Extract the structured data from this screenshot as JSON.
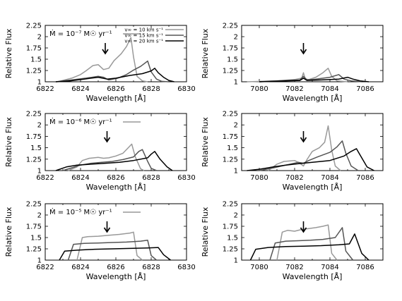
{
  "figure": {
    "legend_entries": [
      "v∞ = 10 km s⁻¹",
      "v∞ = 15 km s⁻¹",
      "v∞ = 20 km s⁻¹"
    ],
    "colors": {
      "v10": "#999999",
      "v15": "#555555",
      "v20": "#000000"
    }
  },
  "chart_data": [
    {
      "type": "line",
      "panel": "top-left",
      "xlabel": "Wavelength [Å]",
      "ylabel": "Relative Flux",
      "xlim": [
        6822,
        6830
      ],
      "ylim": [
        1,
        2.25
      ],
      "xticks": [
        "6822",
        "6824",
        "6826",
        "6828",
        "6830"
      ],
      "yticks": [
        "1",
        "1.25",
        "1.5",
        "1.75",
        "2",
        "2.25"
      ],
      "mdot_label": "Ṁ = 10⁻⁷ M☉ yr⁻¹",
      "arrow_x": 6825.4,
      "series": [
        {
          "name": "v∞ = 10 km s⁻¹",
          "color": "#999999",
          "x": [
            6822.7,
            6823.5,
            6824.0,
            6824.3,
            6824.7,
            6825.0,
            6825.3,
            6825.6,
            6825.9,
            6826.3,
            6826.6,
            6826.85,
            6827.0,
            6827.2,
            6827.5,
            6827.8
          ],
          "y": [
            1.0,
            1.08,
            1.16,
            1.24,
            1.36,
            1.38,
            1.27,
            1.3,
            1.47,
            1.62,
            1.78,
            1.98,
            1.55,
            1.12,
            1.02,
            1.0
          ]
        },
        {
          "name": "v∞ = 15 km s⁻¹",
          "color": "#555555",
          "x": [
            6822.6,
            6823.5,
            6824.3,
            6825.0,
            6825.3,
            6825.6,
            6826.1,
            6826.6,
            6827.0,
            6827.4,
            6827.8,
            6828.0,
            6828.3,
            6828.6,
            6829.0
          ],
          "y": [
            1.0,
            1.04,
            1.08,
            1.12,
            1.1,
            1.04,
            1.08,
            1.16,
            1.26,
            1.34,
            1.46,
            1.22,
            1.06,
            1.01,
            1.0
          ]
        },
        {
          "name": "v∞ = 20 km s⁻¹",
          "color": "#000000",
          "x": [
            6822.6,
            6823.4,
            6824.2,
            6825.0,
            6825.5,
            6826.0,
            6826.8,
            6827.5,
            6828.0,
            6828.2,
            6828.4,
            6828.7,
            6829.0,
            6829.3
          ],
          "y": [
            1.0,
            1.02,
            1.06,
            1.1,
            1.06,
            1.08,
            1.14,
            1.18,
            1.24,
            1.3,
            1.2,
            1.1,
            1.03,
            1.0
          ]
        }
      ]
    },
    {
      "type": "line",
      "panel": "top-right",
      "xlabel": "Wavelength [Å]",
      "ylabel": "Relative Flux",
      "xlim": [
        7079,
        7087
      ],
      "ylim": [
        1,
        2.25
      ],
      "xticks": [
        "7080",
        "7082",
        "7084",
        "7086"
      ],
      "yticks": [
        "1",
        "1.25",
        "1.5",
        "1.75",
        "2",
        "2.25"
      ],
      "arrow_x": 7082.5,
      "series": [
        {
          "name": "v∞ = 10 km s⁻¹",
          "color": "#999999",
          "x": [
            7079.3,
            7081.0,
            7082.0,
            7082.4,
            7082.5,
            7082.6,
            7082.8,
            7083.2,
            7083.6,
            7083.9,
            7084.1,
            7084.4,
            7085.0
          ],
          "y": [
            1.0,
            1.02,
            1.05,
            1.08,
            1.2,
            1.06,
            1.05,
            1.1,
            1.2,
            1.3,
            1.12,
            1.02,
            1.0
          ]
        },
        {
          "name": "v∞ = 15 km s⁻¹",
          "color": "#555555",
          "x": [
            7080.0,
            7081.5,
            7082.3,
            7082.5,
            7082.7,
            7083.2,
            7084.0,
            7084.5,
            7084.8,
            7085.2,
            7085.8
          ],
          "y": [
            1.0,
            1.03,
            1.04,
            1.12,
            1.04,
            1.06,
            1.1,
            1.16,
            1.06,
            1.02,
            1.0
          ]
        },
        {
          "name": "v∞ = 20 km s⁻¹",
          "color": "#000000",
          "x": [
            7080.0,
            7081.5,
            7082.3,
            7082.5,
            7082.7,
            7083.5,
            7084.5,
            7085.0,
            7085.3,
            7085.7,
            7086.2
          ],
          "y": [
            1.0,
            1.02,
            1.03,
            1.08,
            1.03,
            1.04,
            1.06,
            1.1,
            1.06,
            1.02,
            1.0
          ]
        }
      ]
    },
    {
      "type": "line",
      "panel": "middle-left",
      "xlabel": "Wavelength [Å]",
      "ylabel": "Relative Flux",
      "xlim": [
        6822,
        6830
      ],
      "ylim": [
        1,
        2.25
      ],
      "xticks": [
        "6822",
        "6824",
        "6826",
        "6828",
        "6830"
      ],
      "yticks": [
        "1",
        "1.25",
        "1.5",
        "1.75",
        "2",
        "2.25"
      ],
      "mdot_label": "Ṁ = 10⁻⁶ M☉ yr⁻¹",
      "arrow_x": 6825.5,
      "series": [
        {
          "name": "v∞ = 10 km s⁻¹",
          "color": "#999999",
          "x": [
            6823.3,
            6823.8,
            6824.1,
            6824.5,
            6825.0,
            6825.3,
            6825.6,
            6826.0,
            6826.4,
            6826.7,
            6826.9,
            6827.1,
            6827.4,
            6827.6
          ],
          "y": [
            1.0,
            1.08,
            1.22,
            1.27,
            1.29,
            1.27,
            1.28,
            1.32,
            1.38,
            1.5,
            1.58,
            1.3,
            1.04,
            1.0
          ]
        },
        {
          "name": "v∞ = 15 km s⁻¹",
          "color": "#555555",
          "x": [
            6823.0,
            6823.5,
            6824.0,
            6824.6,
            6825.2,
            6825.8,
            6826.4,
            6827.0,
            6827.3,
            6827.5,
            6827.8,
            6828.0,
            6828.3
          ],
          "y": [
            1.0,
            1.06,
            1.12,
            1.16,
            1.18,
            1.2,
            1.24,
            1.3,
            1.42,
            1.46,
            1.2,
            1.05,
            1.0
          ]
        },
        {
          "name": "v∞ = 20 km s⁻¹",
          "color": "#000000",
          "x": [
            6822.6,
            6823.2,
            6823.8,
            6824.6,
            6825.4,
            6826.2,
            6827.0,
            6827.8,
            6828.0,
            6828.2,
            6828.5,
            6828.9,
            6829.2
          ],
          "y": [
            1.0,
            1.08,
            1.12,
            1.14,
            1.16,
            1.18,
            1.22,
            1.28,
            1.36,
            1.42,
            1.25,
            1.08,
            1.0
          ]
        }
      ]
    },
    {
      "type": "line",
      "panel": "middle-right",
      "xlabel": "Wavelength [Å]",
      "ylabel": "Relative Flux",
      "xlim": [
        7079,
        7087
      ],
      "ylim": [
        1,
        2.25
      ],
      "xticks": [
        "7080",
        "7082",
        "7084",
        "7086"
      ],
      "yticks": [
        "1",
        "1.25",
        "1.5",
        "1.75",
        "2",
        "2.25"
      ],
      "arrow_x": 7082.5,
      "series": [
        {
          "name": "v∞ = 10 km s⁻¹",
          "color": "#999999",
          "x": [
            7080.5,
            7081.0,
            7081.4,
            7082.0,
            7082.3,
            7082.5,
            7082.7,
            7083.0,
            7083.4,
            7083.7,
            7083.9,
            7084.1,
            7084.3,
            7084.6
          ],
          "y": [
            1.0,
            1.14,
            1.2,
            1.22,
            1.16,
            1.1,
            1.24,
            1.42,
            1.5,
            1.62,
            1.98,
            1.45,
            1.1,
            1.0
          ]
        },
        {
          "name": "v∞ = 15 km s⁻¹",
          "color": "#555555",
          "x": [
            7080.0,
            7080.8,
            7081.5,
            7082.2,
            7082.5,
            7082.8,
            7083.3,
            7084.0,
            7084.4,
            7084.7,
            7084.9,
            7085.2,
            7085.6
          ],
          "y": [
            1.0,
            1.06,
            1.12,
            1.18,
            1.16,
            1.22,
            1.3,
            1.4,
            1.52,
            1.65,
            1.38,
            1.1,
            1.0
          ]
        },
        {
          "name": "v∞ = 20 km s⁻¹",
          "color": "#000000",
          "x": [
            7079.3,
            7080.0,
            7080.8,
            7081.5,
            7082.2,
            7083.0,
            7084.0,
            7084.8,
            7085.2,
            7085.5,
            7085.8,
            7086.1,
            7086.5
          ],
          "y": [
            1.0,
            1.03,
            1.08,
            1.12,
            1.15,
            1.18,
            1.22,
            1.32,
            1.42,
            1.48,
            1.28,
            1.08,
            1.0
          ]
        }
      ]
    },
    {
      "type": "line",
      "panel": "bottom-left",
      "xlabel": "Wavelength [Å]",
      "ylabel": "Relative Flux",
      "xlim": [
        6822,
        6830
      ],
      "ylim": [
        1,
        2.25
      ],
      "xticks": [
        "6822",
        "6824",
        "6826",
        "6828",
        "6830"
      ],
      "yticks": [
        "1",
        "1.25",
        "1.5",
        "1.75",
        "2",
        "2.25"
      ],
      "mdot_label": "Ṁ = 10⁻⁵ M☉ yr⁻¹",
      "arrow_x": 6825.5,
      "series": [
        {
          "name": "v∞ = 10 km s⁻¹",
          "color": "#999999",
          "x": [
            6823.8,
            6824.1,
            6824.4,
            6825.0,
            6825.6,
            6826.2,
            6826.8,
            6827.0,
            6827.2,
            6827.5
          ],
          "y": [
            1.0,
            1.5,
            1.52,
            1.53,
            1.55,
            1.57,
            1.6,
            1.62,
            1.1,
            1.0
          ]
        },
        {
          "name": "v∞ = 15 km s⁻¹",
          "color": "#555555",
          "x": [
            6823.3,
            6823.6,
            6824.2,
            6825.0,
            6825.8,
            6826.6,
            6827.4,
            6827.8,
            6828.0,
            6828.3
          ],
          "y": [
            1.0,
            1.35,
            1.37,
            1.38,
            1.39,
            1.4,
            1.42,
            1.44,
            1.1,
            1.0
          ]
        },
        {
          "name": "v∞ = 20 km s⁻¹",
          "color": "#000000",
          "x": [
            6822.8,
            6823.1,
            6823.8,
            6824.8,
            6825.8,
            6826.8,
            6827.8,
            6828.4,
            6828.7,
            6829.1
          ],
          "y": [
            1.0,
            1.2,
            1.22,
            1.24,
            1.25,
            1.26,
            1.27,
            1.28,
            1.12,
            1.0
          ]
        }
      ]
    },
    {
      "type": "line",
      "panel": "bottom-right",
      "xlabel": "Wavelength [Å]",
      "ylabel": "Relative Flux",
      "xlim": [
        7079,
        7087
      ],
      "ylim": [
        1,
        2.25
      ],
      "xticks": [
        "7080",
        "7082",
        "7084",
        "7086"
      ],
      "yticks": [
        "1",
        "1.25",
        "1.5",
        "1.75",
        "2",
        "2.25"
      ],
      "arrow_x": 7082.5,
      "series": [
        {
          "name": "v∞ = 10 km s⁻¹",
          "color": "#999999",
          "x": [
            7081.0,
            7081.3,
            7081.6,
            7082.0,
            7082.4,
            7082.8,
            7083.2,
            7083.6,
            7083.9,
            7084.1,
            7084.4
          ],
          "y": [
            1.0,
            1.62,
            1.66,
            1.64,
            1.68,
            1.7,
            1.72,
            1.75,
            1.78,
            1.15,
            1.0
          ]
        },
        {
          "name": "v∞ = 15 km s⁻¹",
          "color": "#555555",
          "x": [
            7080.6,
            7080.9,
            7081.5,
            7082.2,
            7082.9,
            7083.6,
            7084.3,
            7084.7,
            7084.9,
            7085.3
          ],
          "y": [
            1.0,
            1.38,
            1.42,
            1.43,
            1.44,
            1.46,
            1.5,
            1.72,
            1.2,
            1.0
          ]
        },
        {
          "name": "v∞ = 20 km s⁻¹",
          "color": "#000000",
          "x": [
            7079.5,
            7079.8,
            7080.5,
            7081.5,
            7082.5,
            7083.5,
            7084.5,
            7085.1,
            7085.4,
            7085.8,
            7086.2
          ],
          "y": [
            1.0,
            1.24,
            1.28,
            1.3,
            1.31,
            1.32,
            1.34,
            1.36,
            1.58,
            1.15,
            1.0
          ]
        }
      ]
    }
  ]
}
